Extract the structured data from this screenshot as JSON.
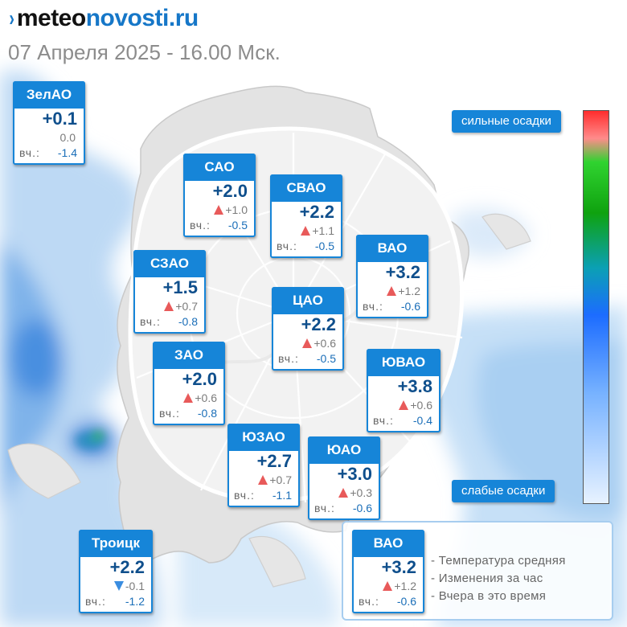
{
  "header": {
    "logo_mark": "›",
    "logo_part1": "meteo",
    "logo_part2": "novosti.ru",
    "datetime": "07 Апреля 2025 - 16.00 Мск."
  },
  "yesterday_label": "вч.:",
  "districts": [
    {
      "name": "ЗелАО",
      "temp": "+0.1",
      "change": "0.0",
      "trend": "none",
      "yesterday": "-1.4"
    },
    {
      "name": "САО",
      "temp": "+2.0",
      "change": "+1.0",
      "trend": "up",
      "yesterday": "-0.5"
    },
    {
      "name": "СВАО",
      "temp": "+2.2",
      "change": "+1.1",
      "trend": "up",
      "yesterday": "-0.5"
    },
    {
      "name": "ВАО",
      "temp": "+3.2",
      "change": "+1.2",
      "trend": "up",
      "yesterday": "-0.6"
    },
    {
      "name": "СЗАО",
      "temp": "+1.5",
      "change": "+0.7",
      "trend": "up",
      "yesterday": "-0.8"
    },
    {
      "name": "ЦАО",
      "temp": "+2.2",
      "change": "+0.6",
      "trend": "up",
      "yesterday": "-0.5"
    },
    {
      "name": "ЗАО",
      "temp": "+2.0",
      "change": "+0.6",
      "trend": "up",
      "yesterday": "-0.8"
    },
    {
      "name": "ЮВАО",
      "temp": "+3.8",
      "change": "+0.6",
      "trend": "up",
      "yesterday": "-0.4"
    },
    {
      "name": "ЮЗАО",
      "temp": "+2.7",
      "change": "+0.7",
      "trend": "up",
      "yesterday": "-1.1"
    },
    {
      "name": "ЮАО",
      "temp": "+3.0",
      "change": "+0.3",
      "trend": "up",
      "yesterday": "-0.6"
    },
    {
      "name": "Троицк",
      "temp": "+2.2",
      "change": "-0.1",
      "trend": "down",
      "yesterday": "-1.2"
    }
  ],
  "precipitation_scale": {
    "high_label": "сильные осадки",
    "low_label": "слабые осадки",
    "colors": [
      "#ff2d2d",
      "#30d330",
      "#1c6cff",
      "#e7f2ff"
    ]
  },
  "legend": {
    "sample": {
      "name": "ВАО",
      "temp": "+3.2",
      "change": "+1.2",
      "trend": "up",
      "yesterday": "-0.6"
    },
    "line1": "- Температура средняя",
    "line2": "- Изменения за час",
    "line3": "- Вчера в это время"
  },
  "colors": {
    "accent": "#1685d8",
    "up_arrow": "#e85a5a",
    "down_arrow": "#3a8de0",
    "temp_text": "#0f4f8c"
  }
}
